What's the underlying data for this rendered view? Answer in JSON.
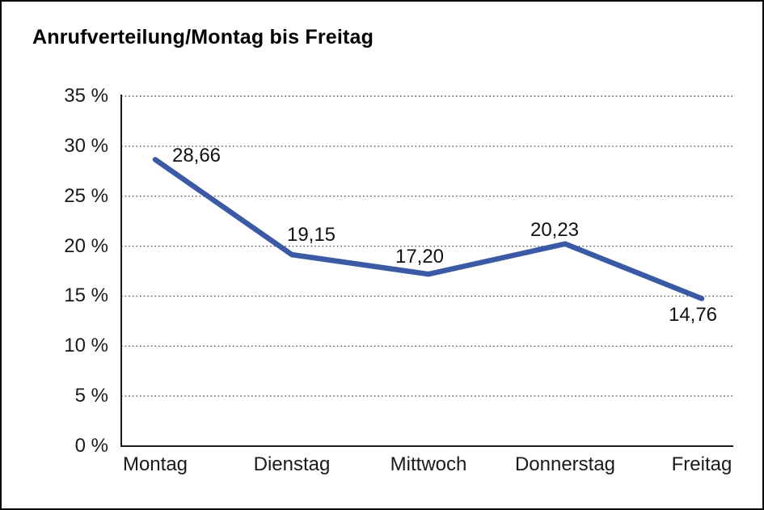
{
  "title": "Anrufverteilung/Montag bis Freitag",
  "chart_data": {
    "type": "line",
    "title": "Anrufverteilung/Montag bis Freitag",
    "categories": [
      "Montag",
      "Dienstag",
      "Mittwoch",
      "Donnerstag",
      "Freitag"
    ],
    "values": [
      28.66,
      19.15,
      17.2,
      20.23,
      14.76
    ],
    "value_labels": [
      "28,66",
      "19,15",
      "17,20",
      "20,23",
      "14,76"
    ],
    "xlabel": "",
    "ylabel": "",
    "ylim": [
      0,
      35
    ],
    "ytick_step": 5,
    "ytick_labels": [
      "0 %",
      "5 %",
      "10 %",
      "15 %",
      "20 %",
      "25 %",
      "30 %",
      "35 %"
    ],
    "unit": "%",
    "grid": "horizontal-dotted",
    "legend": "none",
    "series_name": "Anrufverteilung"
  },
  "colors": {
    "line": "#3B5AA5",
    "axis": "#1a1a1a",
    "grid": "#555555",
    "text": "#111111",
    "background": "#ffffff",
    "frame": "#000000"
  }
}
